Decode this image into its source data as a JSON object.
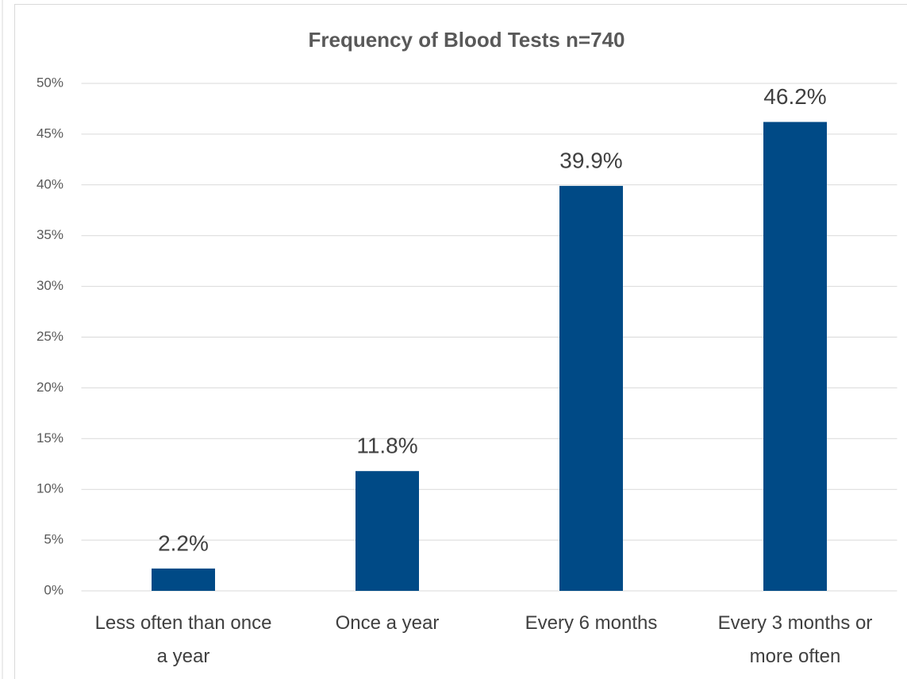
{
  "chart_data": {
    "type": "bar",
    "title": "Frequency of Blood Tests n=740",
    "categories": [
      "Less often than once a year",
      "Once a year",
      "Every 6 months",
      "Every 3 months or more often"
    ],
    "values": [
      2.2,
      11.8,
      39.9,
      46.2
    ],
    "value_labels": [
      "2.2%",
      "11.8%",
      "39.9%",
      "46.2%"
    ],
    "color": "#004a86",
    "ylim": [
      0,
      50
    ],
    "yticks": [
      {
        "value": 0,
        "label": "0%"
      },
      {
        "value": 5,
        "label": "5%"
      },
      {
        "value": 10,
        "label": "10%"
      },
      {
        "value": 15,
        "label": "15%"
      },
      {
        "value": 20,
        "label": "20%"
      },
      {
        "value": 25,
        "label": "25%"
      },
      {
        "value": 30,
        "label": "30%"
      },
      {
        "value": 35,
        "label": "35%"
      },
      {
        "value": 40,
        "label": "40%"
      },
      {
        "value": 45,
        "label": "45%"
      },
      {
        "value": 50,
        "label": "50%"
      }
    ],
    "grid": true
  }
}
